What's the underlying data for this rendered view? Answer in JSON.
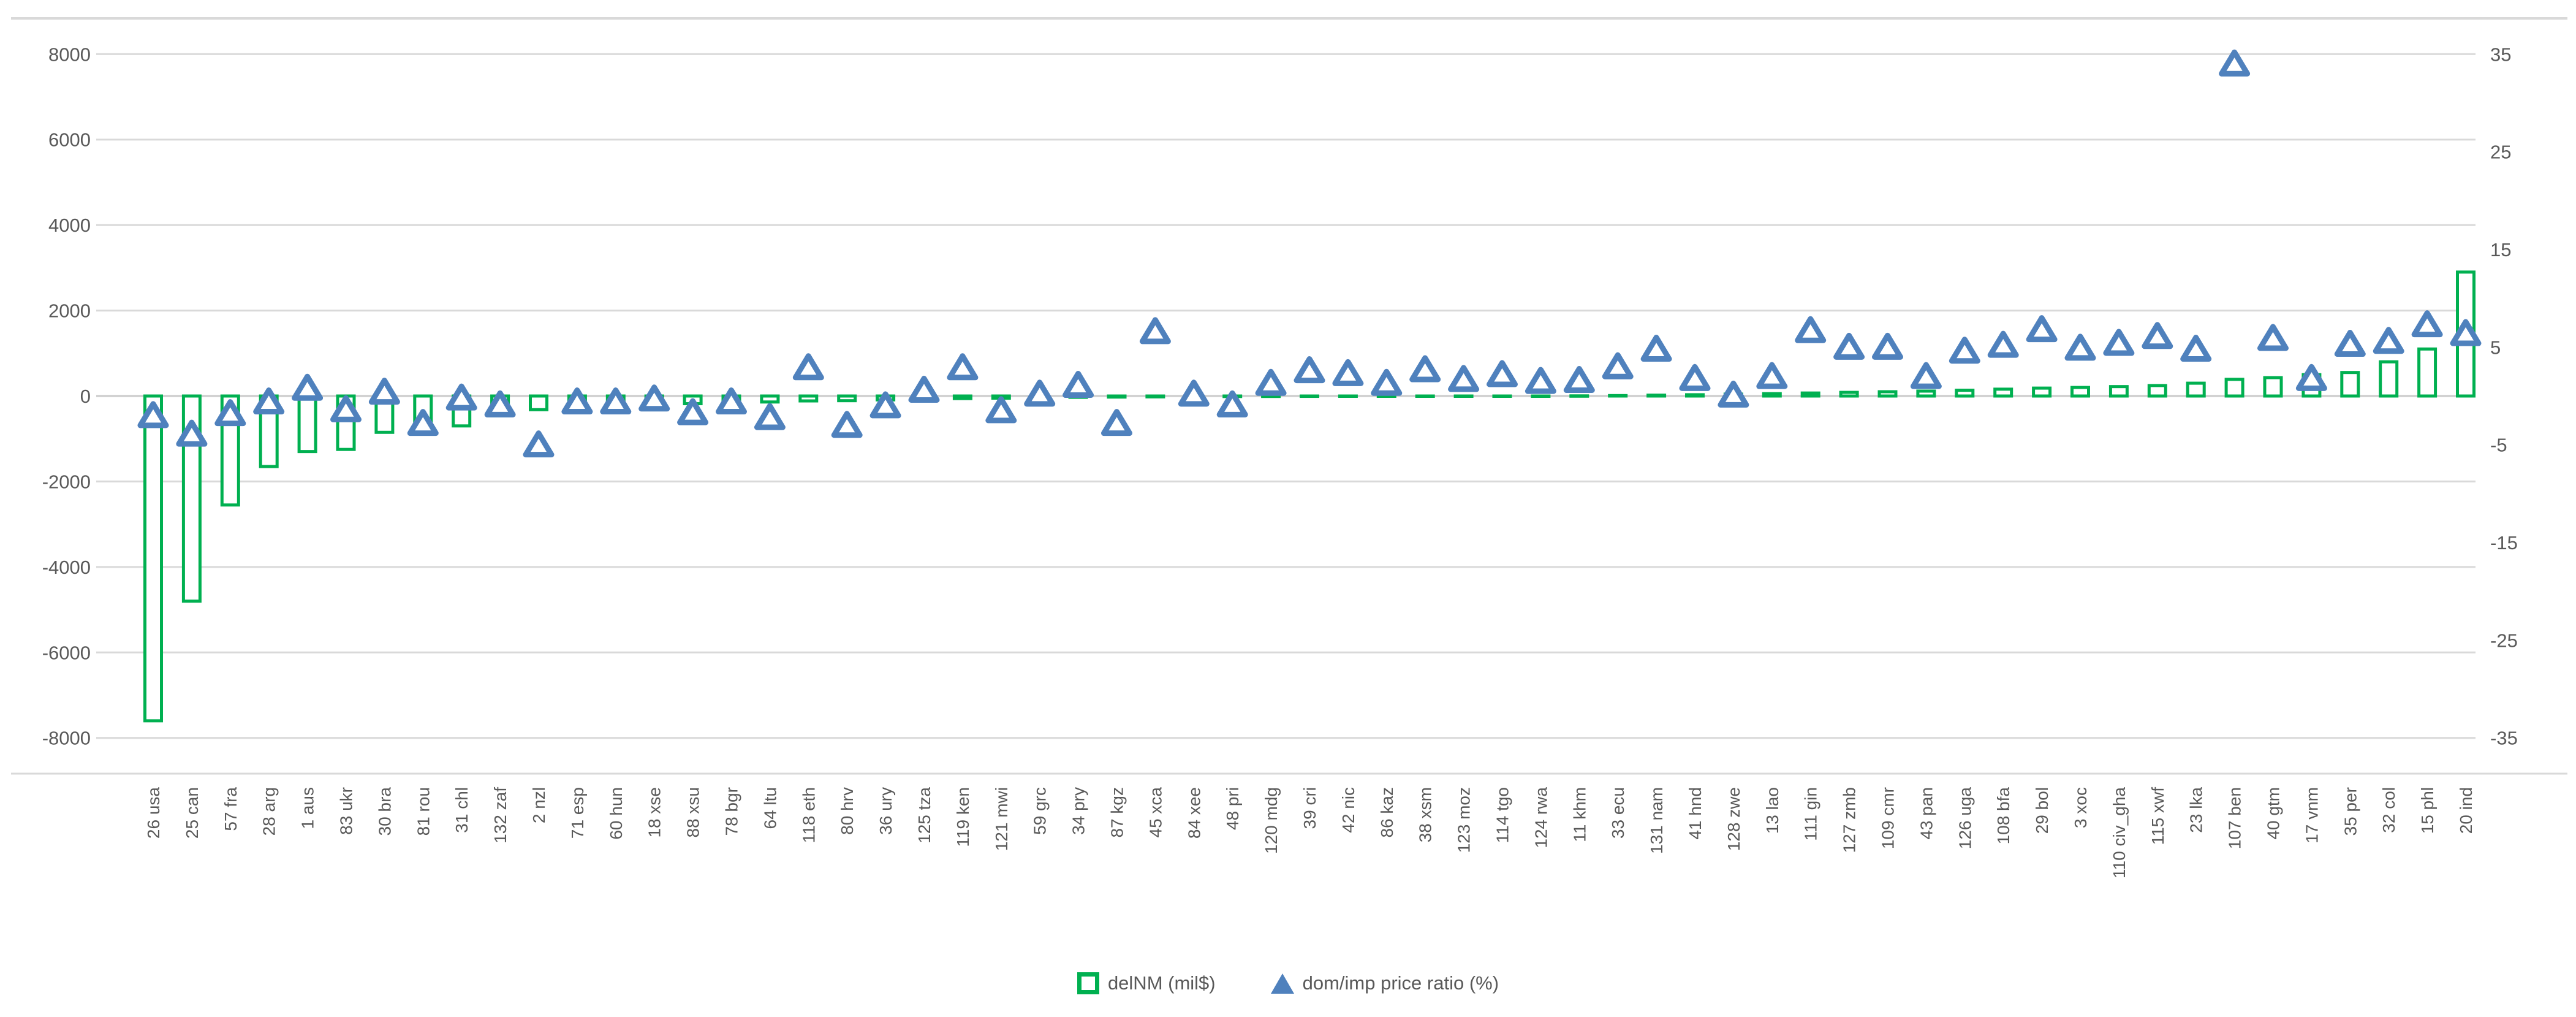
{
  "chart_data": {
    "type": "combo-bar-scatter",
    "title": "",
    "categories": [
      "26 usa",
      "25 can",
      "57 fra",
      "28 arg",
      "1 aus",
      "83 ukr",
      "30 bra",
      "81 rou",
      "31 chl",
      "132 zaf",
      "2 nzl",
      "71 esp",
      "60 hun",
      "18 xse",
      "88 xsu",
      "78 bgr",
      "64 ltu",
      "118 eth",
      "80 hrv",
      "36 ury",
      "125 tza",
      "119 ken",
      "121 mwi",
      "59 grc",
      "34 pry",
      "87 kgz",
      "45 xca",
      "84 xee",
      "48 pri",
      "120 mdg",
      "39 cri",
      "42 nic",
      "86 kaz",
      "38 xsm",
      "123 moz",
      "114 tgo",
      "124 rwa",
      "11 khm",
      "33 ecu",
      "131 nam",
      "41 hnd",
      "128 zwe",
      "13 lao",
      "111 gin",
      "127 zmb",
      "109 cmr",
      "43 pan",
      "126 uga",
      "108 bfa",
      "29 bol",
      "3 xoc",
      "110 civ_gha",
      "115 xwf",
      "23 lka",
      "107 ben",
      "40 gtm",
      "17 vnm",
      "35 per",
      "32 col",
      "15 phl",
      "20 ind"
    ],
    "series": [
      {
        "name": "delNM (mil$)",
        "type": "bar",
        "axis": "left",
        "color": "#00B050",
        "values": [
          -7600,
          -4800,
          -2550,
          -1650,
          -1300,
          -1250,
          -850,
          -800,
          -700,
          -460,
          -320,
          -270,
          -230,
          -210,
          -180,
          -160,
          -140,
          -115,
          -110,
          -90,
          -70,
          -60,
          -50,
          -40,
          -30,
          -25,
          -20,
          -15,
          -12,
          -10,
          -8,
          -7,
          -6,
          -5,
          -4,
          -3,
          -1,
          3,
          10,
          20,
          30,
          45,
          55,
          70,
          85,
          100,
          115,
          135,
          160,
          185,
          200,
          220,
          245,
          300,
          390,
          430,
          500,
          550,
          800,
          1100,
          2900
        ]
      },
      {
        "name": "dom/imp price ratio (%)",
        "type": "scatter-triangle",
        "axis": "right",
        "color": "#4F81BD",
        "values": [
          -2.0,
          -3.9,
          -1.8,
          -0.6,
          0.8,
          -1.4,
          0.4,
          -2.8,
          -0.2,
          -0.9,
          -5.0,
          -0.6,
          -0.6,
          -0.3,
          -1.7,
          -0.6,
          -2.2,
          2.9,
          -3.0,
          -1.0,
          0.6,
          2.9,
          -1.5,
          0.2,
          1.1,
          -2.8,
          6.6,
          0.2,
          -0.9,
          1.3,
          2.6,
          2.3,
          1.3,
          2.7,
          1.7,
          2.2,
          1.5,
          1.6,
          3.0,
          4.8,
          1.8,
          0.1,
          2.0,
          6.7,
          5.0,
          5.0,
          2.0,
          4.6,
          5.2,
          6.8,
          4.9,
          5.4,
          6.1,
          4.8,
          34.0,
          5.9,
          1.8,
          5.3,
          5.6,
          7.3,
          6.4
        ]
      }
    ],
    "axes": {
      "left": {
        "min": -8000,
        "max": 8000,
        "step": 2000,
        "tick_labels": [
          "8000",
          "6000",
          "4000",
          "2000",
          "0",
          "-2000",
          "-4000",
          "-6000",
          "-8000"
        ]
      },
      "right": {
        "min": -35,
        "max": 35,
        "step": 10,
        "tick_labels": [
          "35",
          "25",
          "15",
          "5",
          "-5",
          "-15",
          "-25",
          "-35"
        ]
      }
    },
    "grid": true,
    "legend_position": "bottom",
    "gridline_color": "#D9D9D9",
    "zero_line_color": "#D2D2D2",
    "text_color": "#595959"
  },
  "legend": {
    "delnm_label": "delNM (mil$)",
    "ratio_label": "dom/imp price ratio (%)"
  }
}
